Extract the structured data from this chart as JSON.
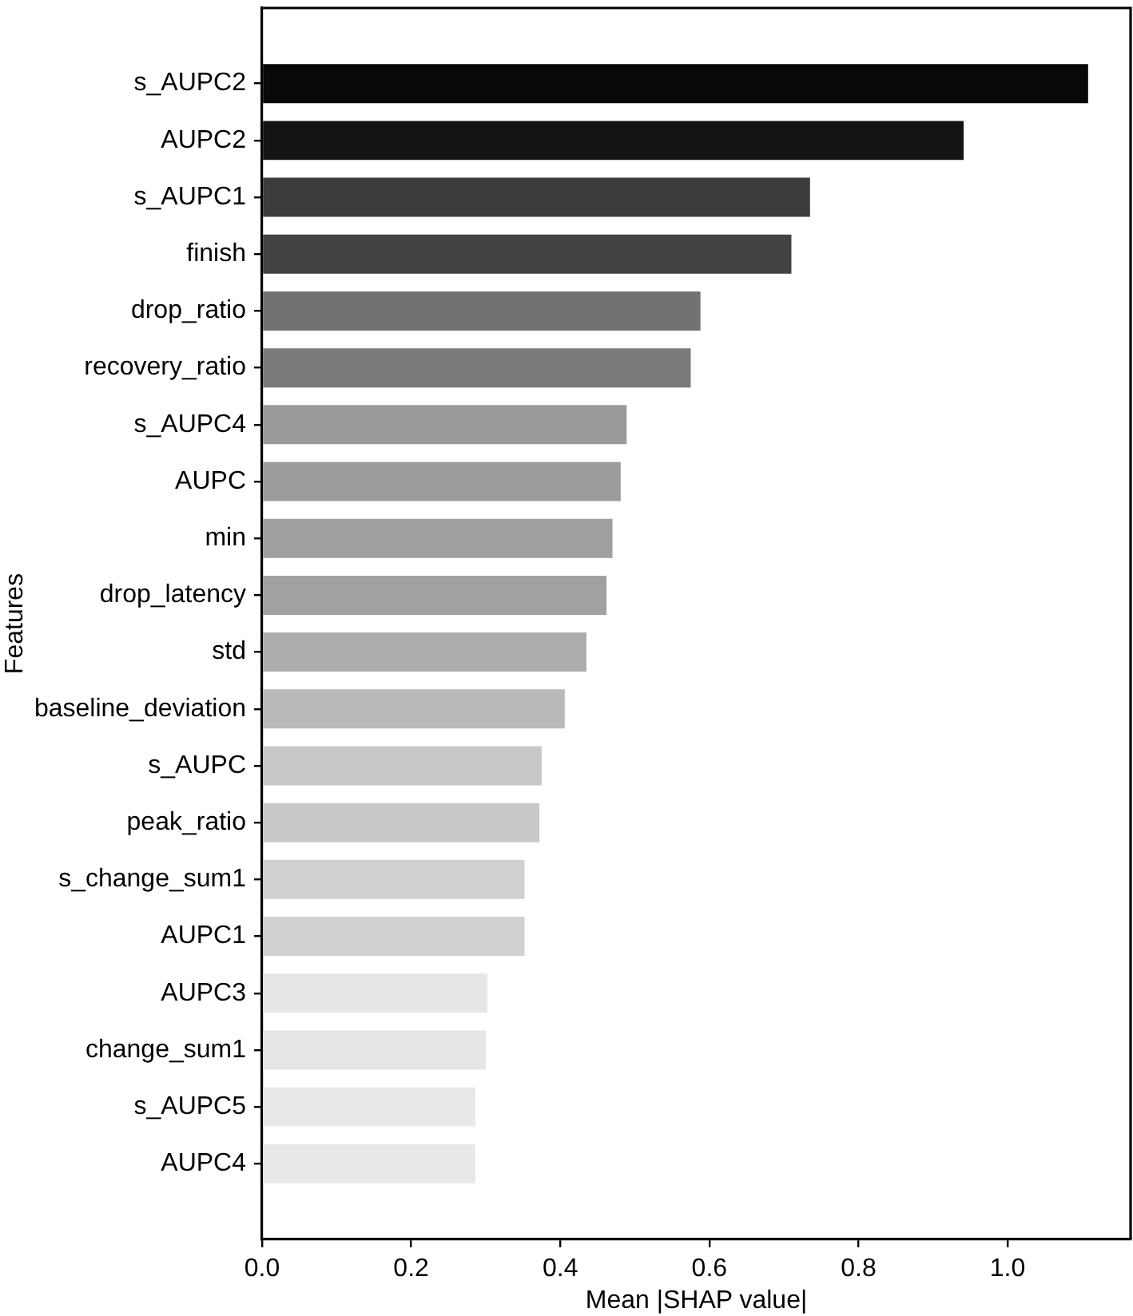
{
  "chart_data": {
    "type": "bar",
    "orientation": "horizontal",
    "categories": [
      "s_AUPC2",
      "AUPC2",
      "s_AUPC1",
      "finish",
      "drop_ratio",
      "recovery_ratio",
      "s_AUPC4",
      "AUPC",
      "min",
      "drop_latency",
      "std",
      "baseline_deviation",
      "s_AUPC",
      "peak_ratio",
      "s_change_sum1",
      "AUPC1",
      "AUPC3",
      "change_sum1",
      "s_AUPC5",
      "AUPC4"
    ],
    "values": [
      1.108,
      0.941,
      0.735,
      0.71,
      0.588,
      0.575,
      0.489,
      0.481,
      0.47,
      0.462,
      0.435,
      0.406,
      0.375,
      0.372,
      0.352,
      0.352,
      0.302,
      0.3,
      0.286,
      0.286
    ],
    "colors": [
      "#080808",
      "#141414",
      "#3c3c3c",
      "#424242",
      "#727272",
      "#7a7a7a",
      "#9a9a9a",
      "#9c9c9c",
      "#9f9f9f",
      "#a1a1a1",
      "#acacac",
      "#bababa",
      "#c8c8c8",
      "#c9c9c9",
      "#d0d0d0",
      "#d0d0d0",
      "#e6e6e6",
      "#e6e6e6",
      "#e8e8e8",
      "#e8e8e8"
    ],
    "xlabel": "Mean |SHAP value|",
    "ylabel": "Features",
    "xlim": [
      0,
      1.165
    ],
    "xticks": [
      {
        "value": 0,
        "label": "0.0"
      },
      0.2,
      0.4,
      0.6,
      0.8,
      {
        "value": 1,
        "label": "1.0"
      }
    ],
    "legend": false,
    "grid": false
  }
}
